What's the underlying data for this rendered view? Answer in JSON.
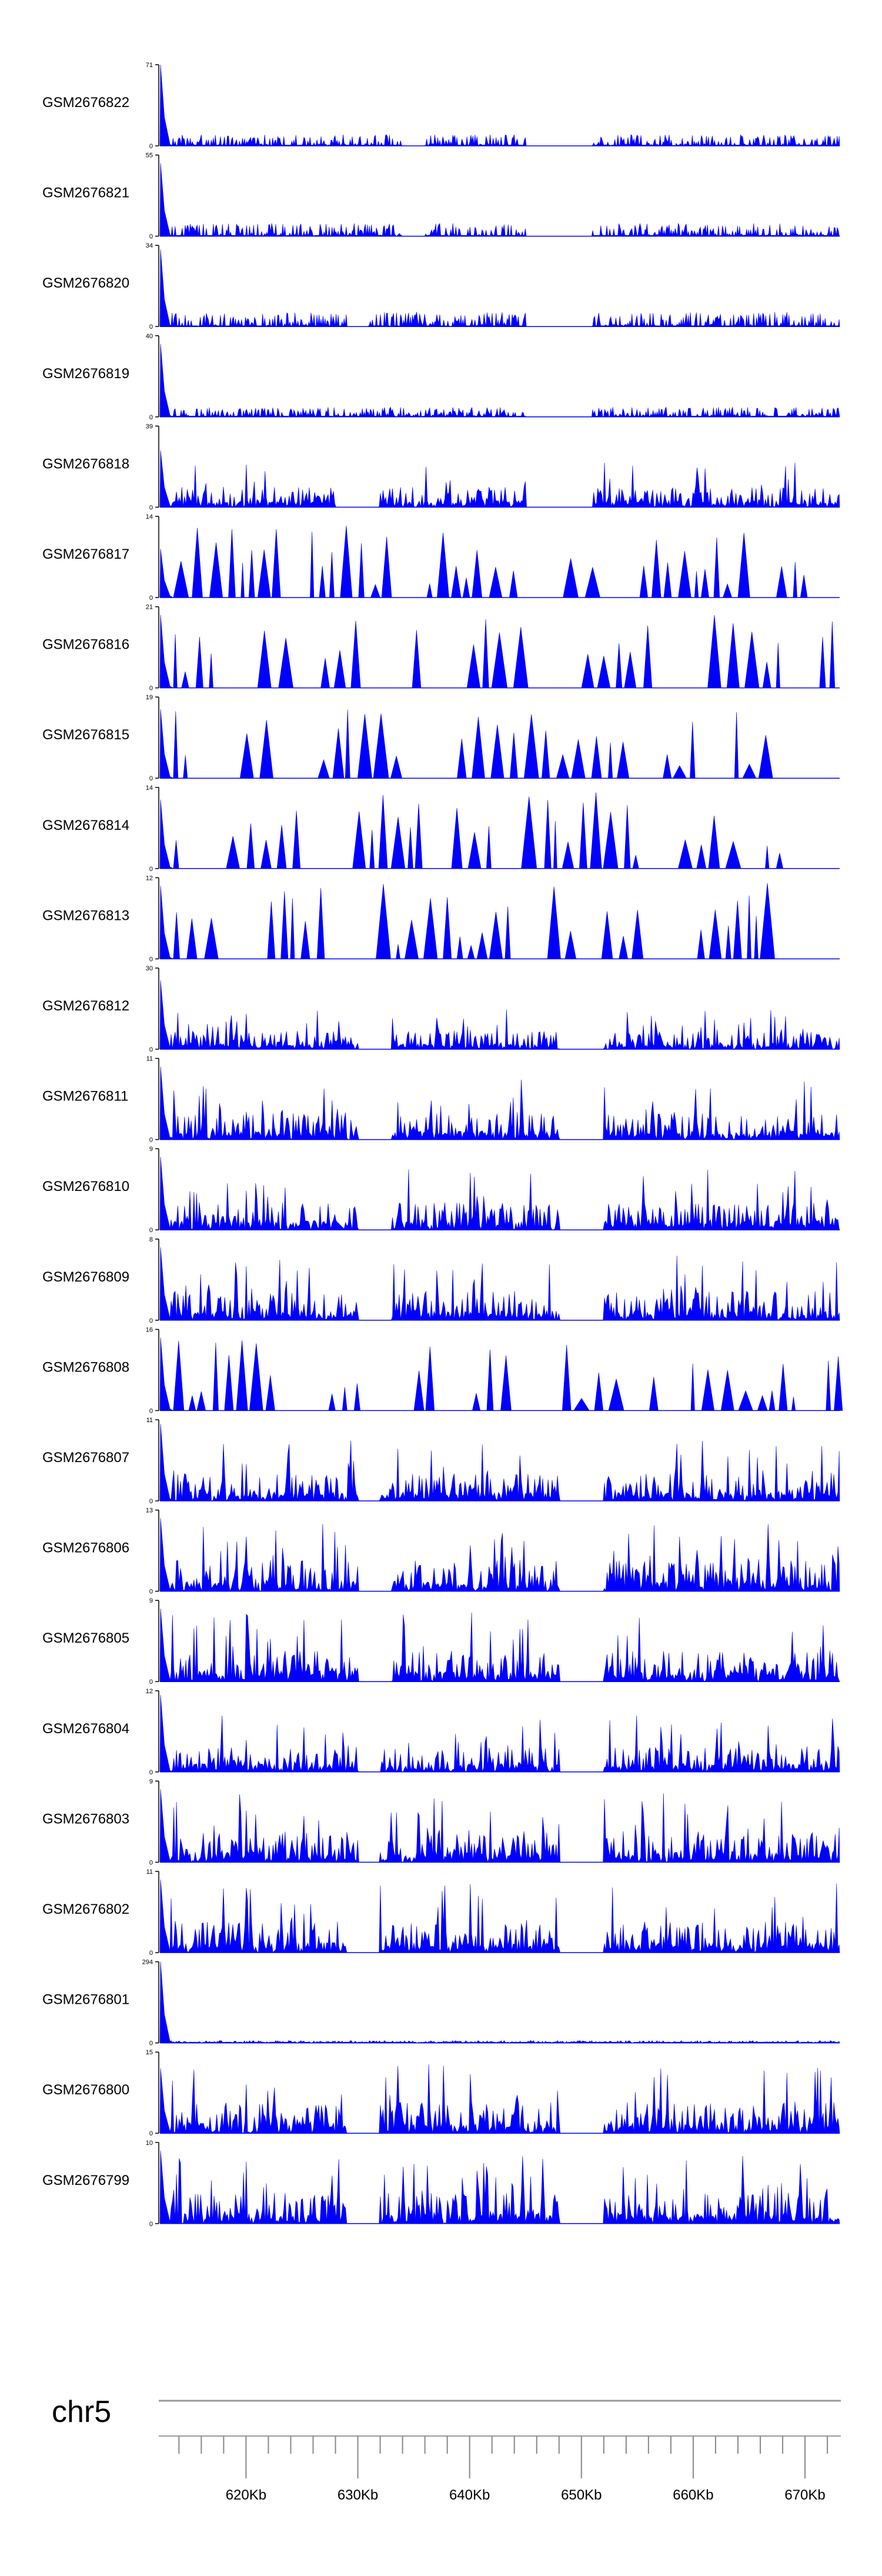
{
  "chart_data": {
    "type": "area",
    "title": "",
    "color": "#0000ff",
    "chromosome": "chr5",
    "x_axis": {
      "unit": "Kb",
      "range": [
        612.3,
        673.1
      ],
      "tick_step_kb": 2,
      "labels": [
        "620Kb",
        "630Kb",
        "640Kb",
        "650Kb",
        "660Kb",
        "670Kb"
      ]
    },
    "tracks": [
      {
        "name": "GSM2676822",
        "ymax": "71",
        "style": "noise",
        "amp": 0.14,
        "spike": 1.0,
        "gaps": [
          [
            634,
            636
          ],
          [
            645,
            651
          ]
        ]
      },
      {
        "name": "GSM2676821",
        "ymax": "55",
        "style": "noise",
        "amp": 0.16,
        "spike": 0.9,
        "gaps": [
          [
            634,
            636
          ],
          [
            645,
            651
          ]
        ]
      },
      {
        "name": "GSM2676820",
        "ymax": "34",
        "style": "noise",
        "amp": 0.18,
        "spike": 0.95,
        "gaps": [
          [
            629,
            631
          ],
          [
            645,
            651
          ]
        ]
      },
      {
        "name": "GSM2676819",
        "ymax": "40",
        "style": "noise",
        "amp": 0.12,
        "spike": 0.9,
        "gaps": [
          [
            645,
            651
          ]
        ]
      },
      {
        "name": "GSM2676818",
        "ymax": "39",
        "style": "dense",
        "amp": 0.55,
        "spike": 0.7,
        "gaps": [
          [
            628,
            632
          ],
          [
            645,
            651
          ]
        ]
      },
      {
        "name": "GSM2676817",
        "ymax": "14",
        "style": "sparse",
        "amp": 0.75,
        "spike": 0.6,
        "gaps": []
      },
      {
        "name": "GSM2676816",
        "ymax": "21",
        "style": "sparse",
        "amp": 0.75,
        "spike": 0.9,
        "gaps": []
      },
      {
        "name": "GSM2676815",
        "ymax": "19",
        "style": "sparse",
        "amp": 0.7,
        "spike": 0.85,
        "gaps": []
      },
      {
        "name": "GSM2676814",
        "ymax": "14",
        "style": "sparse",
        "amp": 0.8,
        "spike": 0.85,
        "gaps": []
      },
      {
        "name": "GSM2676813",
        "ymax": "12",
        "style": "sparse",
        "amp": 0.8,
        "spike": 0.9,
        "gaps": []
      },
      {
        "name": "GSM2676812",
        "ymax": "30",
        "style": "dense",
        "amp": 0.5,
        "spike": 0.85,
        "gaps": [
          [
            630,
            633
          ],
          [
            648,
            652
          ]
        ]
      },
      {
        "name": "GSM2676811",
        "ymax": "11",
        "style": "dense",
        "amp": 0.75,
        "spike": 0.9,
        "gaps": [
          [
            630,
            633
          ],
          [
            648,
            652
          ]
        ]
      },
      {
        "name": "GSM2676810",
        "ymax": "9",
        "style": "dense",
        "amp": 0.75,
        "spike": 0.9,
        "gaps": [
          [
            630,
            633
          ],
          [
            648,
            652
          ]
        ]
      },
      {
        "name": "GSM2676809",
        "ymax": "8",
        "style": "dense",
        "amp": 0.8,
        "spike": 0.9,
        "gaps": [
          [
            630,
            633
          ],
          [
            648,
            652
          ]
        ]
      },
      {
        "name": "GSM2676808",
        "ymax": "16",
        "style": "sparse",
        "amp": 0.75,
        "spike": 0.9,
        "gaps": []
      },
      {
        "name": "GSM2676807",
        "ymax": "11",
        "style": "dense",
        "amp": 0.75,
        "spike": 0.95,
        "gaps": [
          [
            630,
            632
          ],
          [
            648,
            652
          ]
        ]
      },
      {
        "name": "GSM2676806",
        "ymax": "13",
        "style": "dense",
        "amp": 0.85,
        "spike": 0.9,
        "gaps": [
          [
            630,
            633
          ],
          [
            648,
            652
          ]
        ]
      },
      {
        "name": "GSM2676805",
        "ymax": "9",
        "style": "dense",
        "amp": 0.85,
        "spike": 0.9,
        "gaps": [
          [
            630,
            633
          ],
          [
            648,
            652
          ]
        ]
      },
      {
        "name": "GSM2676804",
        "ymax": "12",
        "style": "dense",
        "amp": 0.7,
        "spike": 0.95,
        "gaps": [
          [
            630,
            632
          ],
          [
            648,
            652
          ]
        ]
      },
      {
        "name": "GSM2676803",
        "ymax": "9",
        "style": "dense",
        "amp": 0.85,
        "spike": 0.9,
        "gaps": [
          [
            630,
            632
          ],
          [
            648,
            652
          ]
        ]
      },
      {
        "name": "GSM2676802",
        "ymax": "11",
        "style": "dense",
        "amp": 0.85,
        "spike": 0.9,
        "gaps": [
          [
            629,
            632
          ],
          [
            648,
            652
          ]
        ]
      },
      {
        "name": "GSM2676801",
        "ymax": "294",
        "style": "noise",
        "amp": 0.03,
        "spike": 1.0,
        "gaps": []
      },
      {
        "name": "GSM2676800",
        "ymax": "15",
        "style": "dense",
        "amp": 0.85,
        "spike": 0.8,
        "gaps": [
          [
            629,
            632
          ],
          [
            648,
            652
          ]
        ]
      },
      {
        "name": "GSM2676799",
        "ymax": "10",
        "style": "dense",
        "amp": 0.85,
        "spike": 0.9,
        "gaps": [
          [
            629,
            632
          ],
          [
            648,
            652
          ]
        ]
      }
    ]
  }
}
